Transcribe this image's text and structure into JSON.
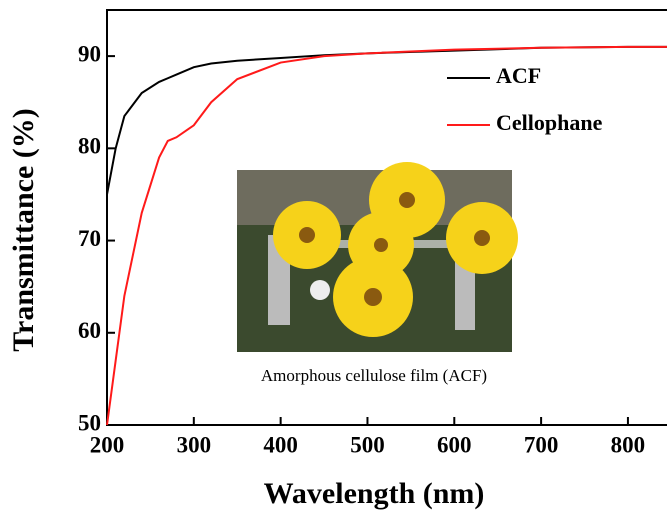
{
  "chart_data": {
    "type": "line",
    "x_label": "Wavelength (nm)",
    "y_label": "Transmittance (%)",
    "x": [
      200,
      210,
      220,
      240,
      260,
      270,
      280,
      300,
      320,
      350,
      400,
      450,
      500,
      600,
      700,
      800,
      845
    ],
    "series": [
      {
        "name": "ACF",
        "color": "#000000",
        "values": [
          75,
          80,
          83.5,
          86,
          87.2,
          87.6,
          88,
          88.8,
          89.2,
          89.5,
          89.8,
          90.1,
          90.3,
          90.6,
          90.9,
          91,
          91
        ]
      },
      {
        "name": "Cellophane",
        "color": "#ff1a1a",
        "values": [
          50,
          57,
          64,
          73,
          79,
          80.8,
          81.2,
          82.5,
          85,
          87.5,
          89.3,
          90,
          90.3,
          90.7,
          90.9,
          91,
          91
        ]
      }
    ],
    "xlim": [
      200,
      845
    ],
    "ylim": [
      50,
      95
    ],
    "xticks": [
      200,
      300,
      400,
      500,
      600,
      700,
      800
    ],
    "yticks": [
      50,
      60,
      70,
      80,
      90
    ],
    "legend": "upper right",
    "grid": false,
    "annotations": [
      "Amorphous cellulose film  (ACF)"
    ]
  }
}
